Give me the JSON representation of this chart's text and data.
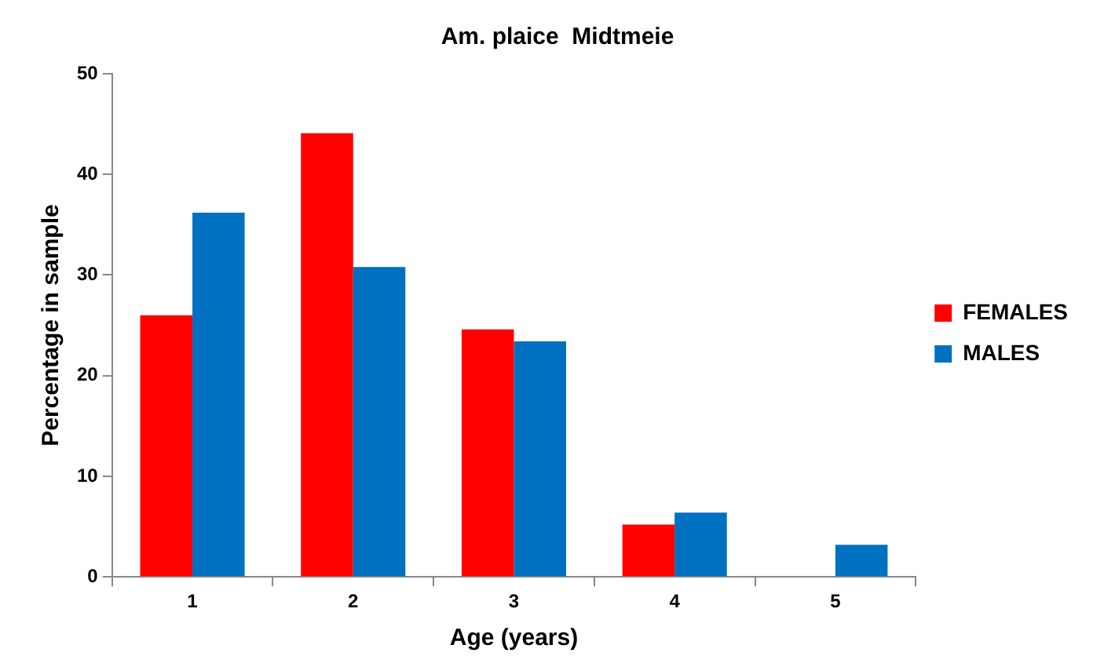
{
  "chart_data": {
    "type": "bar",
    "title": "Am. plaice  Midtmeie",
    "xlabel": "Age (years)",
    "ylabel": "Percentage in sample",
    "categories": [
      "1",
      "2",
      "3",
      "4",
      "5"
    ],
    "series": [
      {
        "name": "FEMALES",
        "color": "#ff0000",
        "values": [
          26,
          44.1,
          24.6,
          5.2,
          0
        ]
      },
      {
        "name": "MALES",
        "color": "#0070c0",
        "values": [
          36.2,
          30.8,
          23.4,
          6.4,
          3.2
        ]
      }
    ],
    "ylim": [
      0,
      50
    ],
    "yticks": [
      0,
      10,
      20,
      30,
      40,
      50
    ],
    "grid": false,
    "legend": "right"
  }
}
